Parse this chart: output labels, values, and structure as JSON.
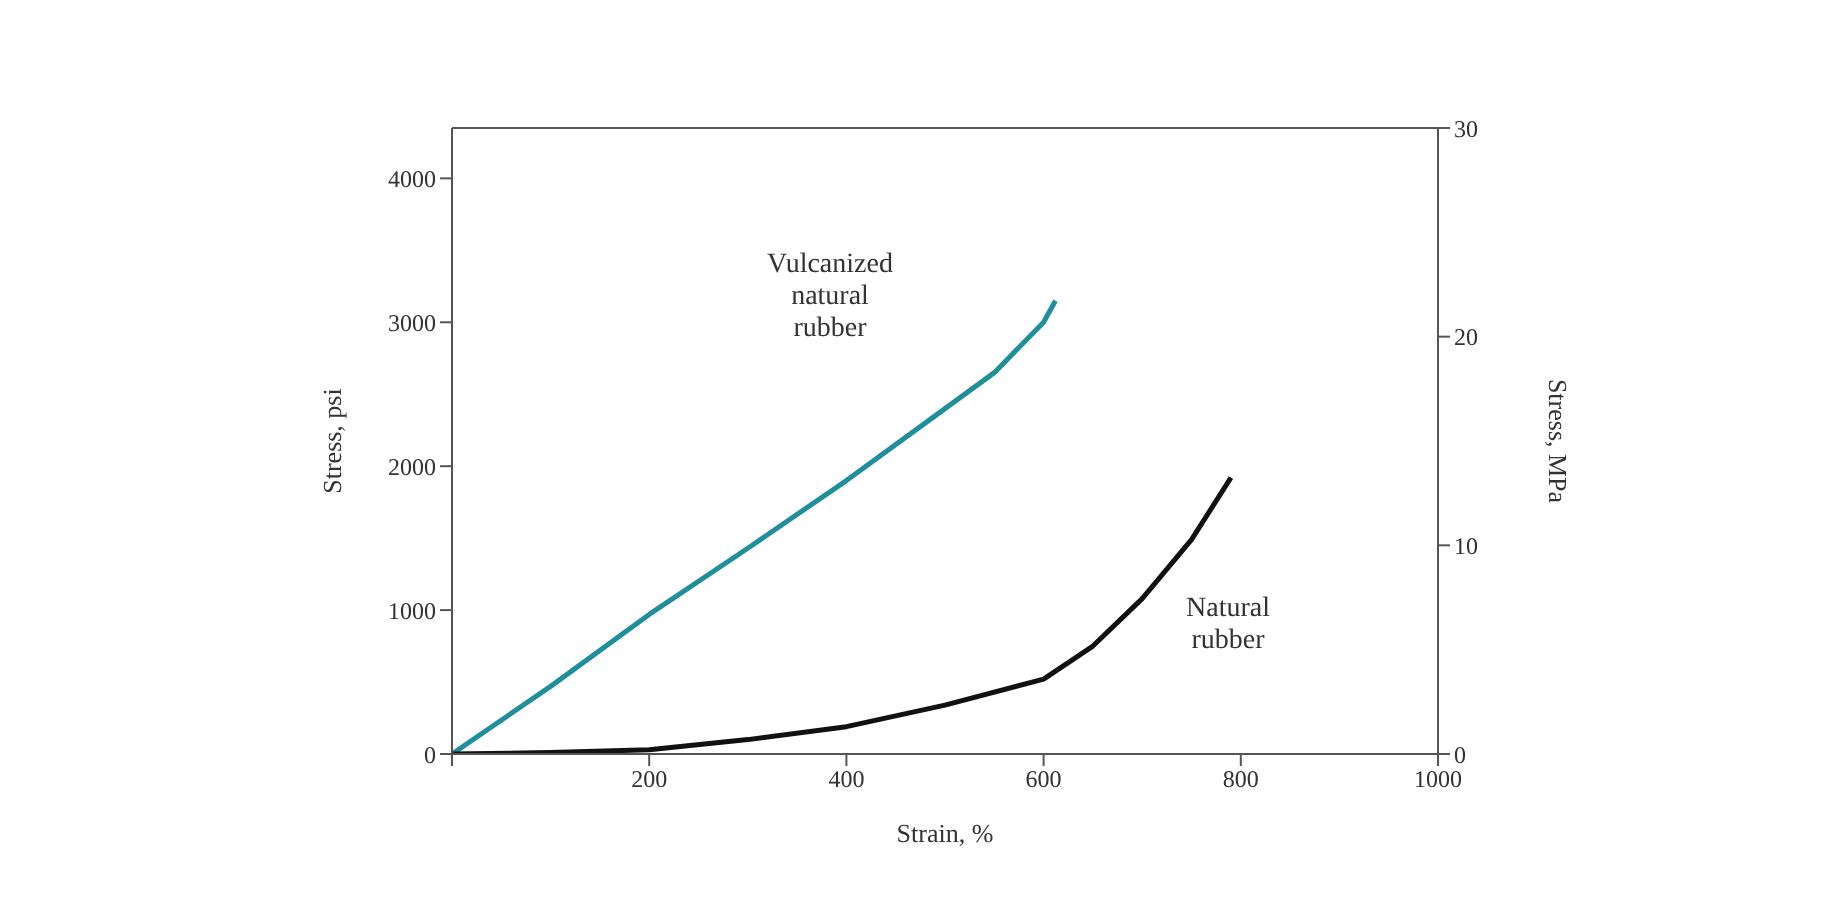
{
  "chart_data": {
    "type": "line",
    "xlabel": "Strain, %",
    "ylabel": "Stress, psi",
    "y2label": "Stress, MPa",
    "xlim": [
      0,
      1000
    ],
    "xticks": [
      {
        "value": 0,
        "label": null
      },
      200,
      400,
      600,
      800,
      1000
    ],
    "ylim": [
      0,
      4350
    ],
    "yticks": [
      0,
      1000,
      2000,
      3000,
      4000
    ],
    "y2lim": [
      0,
      30
    ],
    "y2ticks": [
      0,
      10,
      20,
      30
    ],
    "marker": "none",
    "series": [
      {
        "color": "#1f8f9c",
        "x": [
          0,
          100,
          200,
          300,
          400,
          500,
          550,
          600,
          612
        ],
        "values": [
          0,
          470,
          970,
          1430,
          1900,
          2400,
          2650,
          3000,
          3150
        ]
      },
      {
        "color": "#111111",
        "x": [
          0,
          100,
          200,
          300,
          400,
          500,
          600,
          650,
          700,
          750,
          790
        ],
        "values": [
          0,
          10,
          30,
          100,
          190,
          340,
          520,
          750,
          1080,
          1490,
          1920
        ]
      }
    ],
    "annotations": [
      "Vulcanized\nnatural\nrubber",
      "Natural\nrubber"
    ]
  }
}
